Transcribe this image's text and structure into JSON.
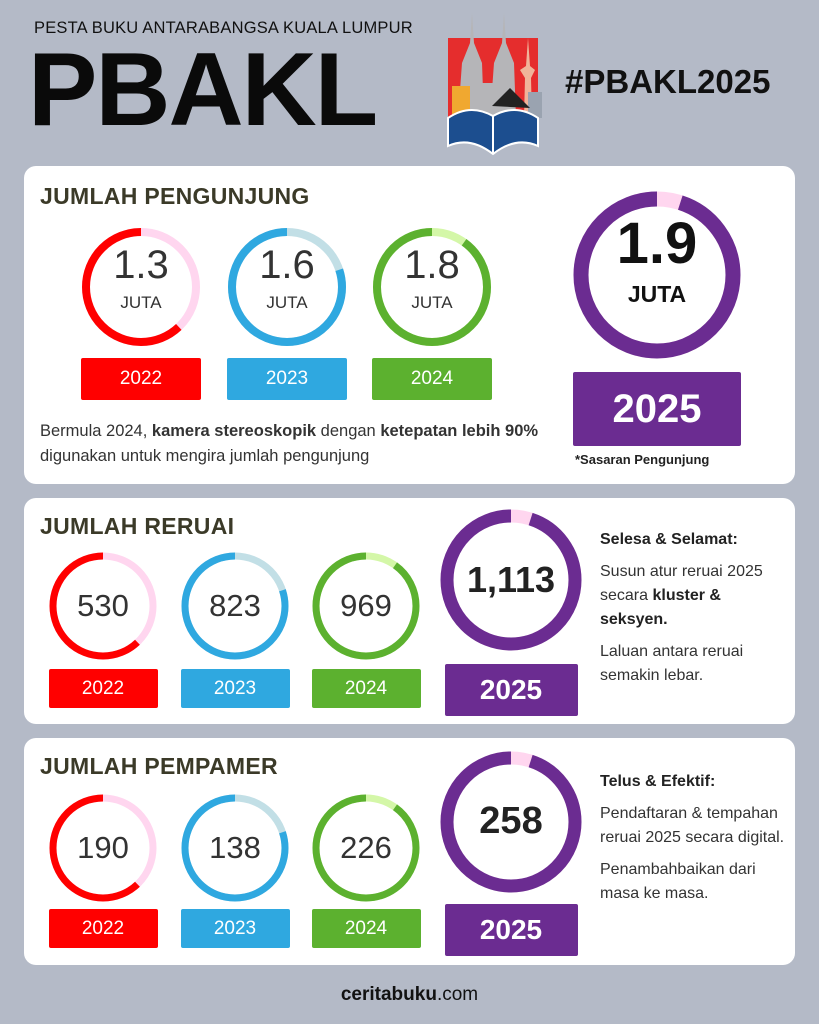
{
  "header": {
    "subtitle": "PESTA BUKU ANTARABANGSA KUALA LUMPUR",
    "brand": "PBAKL",
    "hashtag": "#PBAKL2025"
  },
  "colors": {
    "2022": "#ff0000",
    "2023": "#2fa8e0",
    "2024": "#5cb12f",
    "2025": "#6b2c91",
    "track2022": "#ffd6ef",
    "track2023": "#c2dfe6",
    "track2024": "#d4f7a8",
    "track2025": "#ffd6ef"
  },
  "pengunjung": {
    "title": "JUMLAH PENGUNJUNG",
    "unit": "JUTA",
    "items": [
      {
        "year": "2022",
        "value": "1.3",
        "fill": 0.62
      },
      {
        "year": "2023",
        "value": "1.6",
        "fill": 0.8
      },
      {
        "year": "2024",
        "value": "1.8",
        "fill": 0.9
      }
    ],
    "target": {
      "year": "2025",
      "value": "1.9",
      "unit": "JUTA",
      "fill": 0.95,
      "note": "*Sasaran Pengunjung"
    },
    "desc": {
      "p1": "Bermula 2024, ",
      "b1": "kamera stereoskopik",
      "p2": " dengan ",
      "b2": "ketepatan lebih 90%",
      "p3": " digunakan untuk mengira jumlah pengunjung"
    }
  },
  "reruai": {
    "title": "JUMLAH RERUAI",
    "items": [
      {
        "year": "2022",
        "value": "530",
        "fill": 0.62
      },
      {
        "year": "2023",
        "value": "823",
        "fill": 0.8
      },
      {
        "year": "2024",
        "value": "969",
        "fill": 0.9
      }
    ],
    "target": {
      "year": "2025",
      "value": "1,113",
      "fill": 0.95
    },
    "side": {
      "heading": "Selesa & Selamat:",
      "p1a": "Susun atur reruai 2025 secara ",
      "p1b": "kluster & seksyen.",
      "p2": "Laluan antara reruai semakin lebar."
    }
  },
  "pempamer": {
    "title": "JUMLAH PEMPAMER",
    "items": [
      {
        "year": "2022",
        "value": "190",
        "fill": 0.62
      },
      {
        "year": "2023",
        "value": "138",
        "fill": 0.8
      },
      {
        "year": "2024",
        "value": "226",
        "fill": 0.9
      }
    ],
    "target": {
      "year": "2025",
      "value": "258",
      "fill": 0.95
    },
    "side": {
      "heading": "Telus & Efektif:",
      "p1": "Pendaftaran & tempahan reruai 2025 secara digital.",
      "p2": "Penambahbaikan dari masa ke masa."
    }
  },
  "footer": {
    "site_bold": "ceritabuku",
    "site_rest": ".com"
  }
}
